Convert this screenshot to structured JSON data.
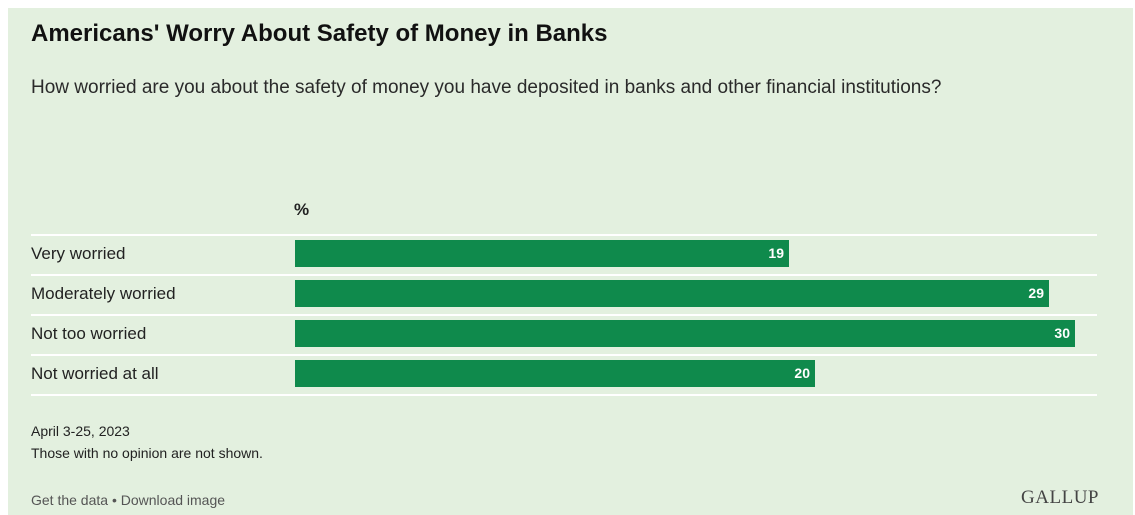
{
  "header": {
    "title": "Americans' Worry About Safety of Money in Banks",
    "question": "How worried are you about the safety of money you have deposited in banks and other financial institutions?"
  },
  "chart_data": {
    "type": "bar",
    "orientation": "horizontal",
    "unit_label": "%",
    "categories": [
      "Very worried",
      "Moderately worried",
      "Not too worried",
      "Not worried at all"
    ],
    "values": [
      19,
      29,
      30,
      20
    ],
    "bar_color": "#0f8a4c",
    "xlim": [
      0,
      30
    ]
  },
  "notes": {
    "date": "April 3-25, 2023",
    "disclaimer": "Those with no opinion are not shown."
  },
  "footer": {
    "get_data": "Get the data",
    "separator": " • ",
    "download": "Download image",
    "brand": "GALLUP"
  },
  "colors": {
    "background": "#e3f0df",
    "bar": "#0f8a4c"
  }
}
